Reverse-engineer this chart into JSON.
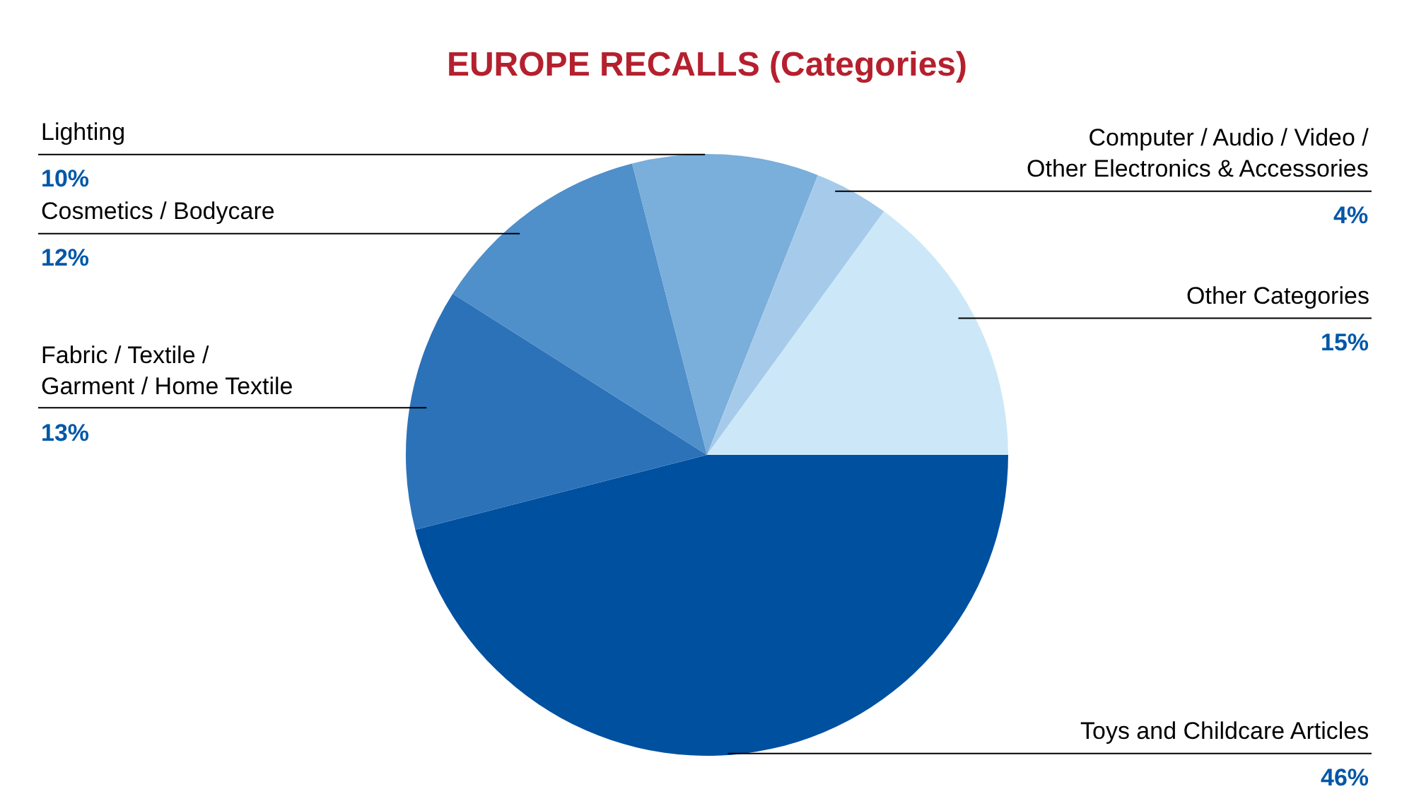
{
  "chart_data": {
    "type": "pie",
    "title": "EUROPE RECALLS (Categories)",
    "categories": [
      "Toys and Childcare Articles",
      "Fabric / Textile / Garment / Home Textile",
      "Cosmetics / Bodycare",
      "Lighting",
      "Computer / Audio / Video / Other Electronics & Accessories",
      "Other Categories"
    ],
    "values": [
      46,
      13,
      12,
      10,
      4,
      15
    ],
    "value_labels": [
      "46%",
      "13%",
      "12%",
      "10%",
      "4%",
      "15%"
    ],
    "colors": [
      "#0050a0",
      "#2c72b8",
      "#4f8fca",
      "#7aaedb",
      "#a6cbea",
      "#cce8f8"
    ],
    "legend": false
  }
}
